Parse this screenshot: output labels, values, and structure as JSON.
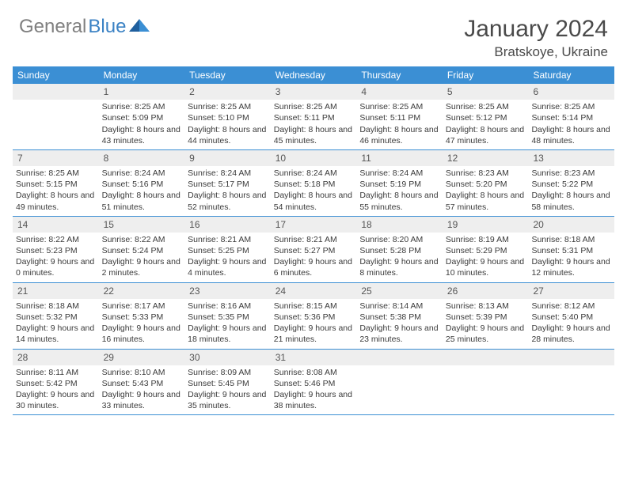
{
  "logo": {
    "part1": "General",
    "part2": "Blue"
  },
  "title": "January 2024",
  "location": "Bratskoye, Ukraine",
  "colors": {
    "header_bg": "#3b8fd4",
    "header_text": "#ffffff",
    "daynum_bg": "#eeeeee",
    "border": "#3b8fd4",
    "logo_gray": "#808080",
    "logo_blue": "#3b82c4",
    "title_color": "#4a4a4a"
  },
  "day_headers": [
    "Sunday",
    "Monday",
    "Tuesday",
    "Wednesday",
    "Thursday",
    "Friday",
    "Saturday"
  ],
  "weeks": [
    [
      {
        "num": "",
        "sunrise": "",
        "sunset": "",
        "daylight": ""
      },
      {
        "num": "1",
        "sunrise": "Sunrise: 8:25 AM",
        "sunset": "Sunset: 5:09 PM",
        "daylight": "Daylight: 8 hours and 43 minutes."
      },
      {
        "num": "2",
        "sunrise": "Sunrise: 8:25 AM",
        "sunset": "Sunset: 5:10 PM",
        "daylight": "Daylight: 8 hours and 44 minutes."
      },
      {
        "num": "3",
        "sunrise": "Sunrise: 8:25 AM",
        "sunset": "Sunset: 5:11 PM",
        "daylight": "Daylight: 8 hours and 45 minutes."
      },
      {
        "num": "4",
        "sunrise": "Sunrise: 8:25 AM",
        "sunset": "Sunset: 5:11 PM",
        "daylight": "Daylight: 8 hours and 46 minutes."
      },
      {
        "num": "5",
        "sunrise": "Sunrise: 8:25 AM",
        "sunset": "Sunset: 5:12 PM",
        "daylight": "Daylight: 8 hours and 47 minutes."
      },
      {
        "num": "6",
        "sunrise": "Sunrise: 8:25 AM",
        "sunset": "Sunset: 5:14 PM",
        "daylight": "Daylight: 8 hours and 48 minutes."
      }
    ],
    [
      {
        "num": "7",
        "sunrise": "Sunrise: 8:25 AM",
        "sunset": "Sunset: 5:15 PM",
        "daylight": "Daylight: 8 hours and 49 minutes."
      },
      {
        "num": "8",
        "sunrise": "Sunrise: 8:24 AM",
        "sunset": "Sunset: 5:16 PM",
        "daylight": "Daylight: 8 hours and 51 minutes."
      },
      {
        "num": "9",
        "sunrise": "Sunrise: 8:24 AM",
        "sunset": "Sunset: 5:17 PM",
        "daylight": "Daylight: 8 hours and 52 minutes."
      },
      {
        "num": "10",
        "sunrise": "Sunrise: 8:24 AM",
        "sunset": "Sunset: 5:18 PM",
        "daylight": "Daylight: 8 hours and 54 minutes."
      },
      {
        "num": "11",
        "sunrise": "Sunrise: 8:24 AM",
        "sunset": "Sunset: 5:19 PM",
        "daylight": "Daylight: 8 hours and 55 minutes."
      },
      {
        "num": "12",
        "sunrise": "Sunrise: 8:23 AM",
        "sunset": "Sunset: 5:20 PM",
        "daylight": "Daylight: 8 hours and 57 minutes."
      },
      {
        "num": "13",
        "sunrise": "Sunrise: 8:23 AM",
        "sunset": "Sunset: 5:22 PM",
        "daylight": "Daylight: 8 hours and 58 minutes."
      }
    ],
    [
      {
        "num": "14",
        "sunrise": "Sunrise: 8:22 AM",
        "sunset": "Sunset: 5:23 PM",
        "daylight": "Daylight: 9 hours and 0 minutes."
      },
      {
        "num": "15",
        "sunrise": "Sunrise: 8:22 AM",
        "sunset": "Sunset: 5:24 PM",
        "daylight": "Daylight: 9 hours and 2 minutes."
      },
      {
        "num": "16",
        "sunrise": "Sunrise: 8:21 AM",
        "sunset": "Sunset: 5:25 PM",
        "daylight": "Daylight: 9 hours and 4 minutes."
      },
      {
        "num": "17",
        "sunrise": "Sunrise: 8:21 AM",
        "sunset": "Sunset: 5:27 PM",
        "daylight": "Daylight: 9 hours and 6 minutes."
      },
      {
        "num": "18",
        "sunrise": "Sunrise: 8:20 AM",
        "sunset": "Sunset: 5:28 PM",
        "daylight": "Daylight: 9 hours and 8 minutes."
      },
      {
        "num": "19",
        "sunrise": "Sunrise: 8:19 AM",
        "sunset": "Sunset: 5:29 PM",
        "daylight": "Daylight: 9 hours and 10 minutes."
      },
      {
        "num": "20",
        "sunrise": "Sunrise: 8:18 AM",
        "sunset": "Sunset: 5:31 PM",
        "daylight": "Daylight: 9 hours and 12 minutes."
      }
    ],
    [
      {
        "num": "21",
        "sunrise": "Sunrise: 8:18 AM",
        "sunset": "Sunset: 5:32 PM",
        "daylight": "Daylight: 9 hours and 14 minutes."
      },
      {
        "num": "22",
        "sunrise": "Sunrise: 8:17 AM",
        "sunset": "Sunset: 5:33 PM",
        "daylight": "Daylight: 9 hours and 16 minutes."
      },
      {
        "num": "23",
        "sunrise": "Sunrise: 8:16 AM",
        "sunset": "Sunset: 5:35 PM",
        "daylight": "Daylight: 9 hours and 18 minutes."
      },
      {
        "num": "24",
        "sunrise": "Sunrise: 8:15 AM",
        "sunset": "Sunset: 5:36 PM",
        "daylight": "Daylight: 9 hours and 21 minutes."
      },
      {
        "num": "25",
        "sunrise": "Sunrise: 8:14 AM",
        "sunset": "Sunset: 5:38 PM",
        "daylight": "Daylight: 9 hours and 23 minutes."
      },
      {
        "num": "26",
        "sunrise": "Sunrise: 8:13 AM",
        "sunset": "Sunset: 5:39 PM",
        "daylight": "Daylight: 9 hours and 25 minutes."
      },
      {
        "num": "27",
        "sunrise": "Sunrise: 8:12 AM",
        "sunset": "Sunset: 5:40 PM",
        "daylight": "Daylight: 9 hours and 28 minutes."
      }
    ],
    [
      {
        "num": "28",
        "sunrise": "Sunrise: 8:11 AM",
        "sunset": "Sunset: 5:42 PM",
        "daylight": "Daylight: 9 hours and 30 minutes."
      },
      {
        "num": "29",
        "sunrise": "Sunrise: 8:10 AM",
        "sunset": "Sunset: 5:43 PM",
        "daylight": "Daylight: 9 hours and 33 minutes."
      },
      {
        "num": "30",
        "sunrise": "Sunrise: 8:09 AM",
        "sunset": "Sunset: 5:45 PM",
        "daylight": "Daylight: 9 hours and 35 minutes."
      },
      {
        "num": "31",
        "sunrise": "Sunrise: 8:08 AM",
        "sunset": "Sunset: 5:46 PM",
        "daylight": "Daylight: 9 hours and 38 minutes."
      },
      {
        "num": "",
        "sunrise": "",
        "sunset": "",
        "daylight": ""
      },
      {
        "num": "",
        "sunrise": "",
        "sunset": "",
        "daylight": ""
      },
      {
        "num": "",
        "sunrise": "",
        "sunset": "",
        "daylight": ""
      }
    ]
  ]
}
